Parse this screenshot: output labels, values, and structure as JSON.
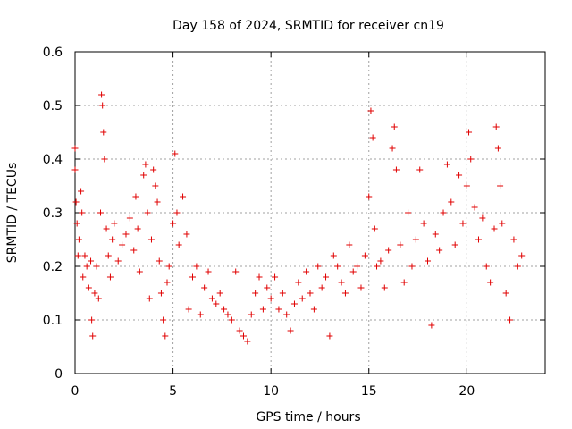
{
  "chart_data": {
    "type": "scatter",
    "title": "Day 158 of 2024, SRMTID for receiver cn19",
    "xlabel": "GPS time / hours",
    "ylabel": "SRMTID / TECUs",
    "xlim": [
      0,
      24
    ],
    "ylim": [
      0,
      0.6
    ],
    "x_ticks": [
      0,
      5,
      10,
      15,
      20
    ],
    "x_tick_labels": [
      "0",
      "5",
      "10",
      "15",
      "20"
    ],
    "y_ticks": [
      0,
      0.1,
      0.2,
      0.3,
      0.4,
      0.5,
      0.6
    ],
    "y_tick_labels": [
      "0",
      "0.1",
      "0.2",
      "0.3",
      "0.4",
      "0.5",
      "0.6"
    ],
    "grid": true,
    "marker": "plus",
    "marker_color": "#e00000",
    "series": [
      {
        "name": "SRMTID",
        "points": [
          [
            0.0,
            0.42
          ],
          [
            0.0,
            0.38
          ],
          [
            0.05,
            0.32
          ],
          [
            0.1,
            0.28
          ],
          [
            0.15,
            0.22
          ],
          [
            0.2,
            0.25
          ],
          [
            0.3,
            0.34
          ],
          [
            0.35,
            0.3
          ],
          [
            0.4,
            0.18
          ],
          [
            0.5,
            0.22
          ],
          [
            0.6,
            0.2
          ],
          [
            0.7,
            0.16
          ],
          [
            0.8,
            0.21
          ],
          [
            0.85,
            0.1
          ],
          [
            0.9,
            0.07
          ],
          [
            1.0,
            0.15
          ],
          [
            1.1,
            0.2
          ],
          [
            1.2,
            0.14
          ],
          [
            1.3,
            0.3
          ],
          [
            1.35,
            0.52
          ],
          [
            1.4,
            0.5
          ],
          [
            1.45,
            0.45
          ],
          [
            1.5,
            0.4
          ],
          [
            1.6,
            0.27
          ],
          [
            1.7,
            0.22
          ],
          [
            1.8,
            0.18
          ],
          [
            1.9,
            0.25
          ],
          [
            2.0,
            0.28
          ],
          [
            2.2,
            0.21
          ],
          [
            2.4,
            0.24
          ],
          [
            2.6,
            0.26
          ],
          [
            2.8,
            0.29
          ],
          [
            3.0,
            0.23
          ],
          [
            3.1,
            0.33
          ],
          [
            3.2,
            0.27
          ],
          [
            3.3,
            0.19
          ],
          [
            3.5,
            0.37
          ],
          [
            3.6,
            0.39
          ],
          [
            3.7,
            0.3
          ],
          [
            3.8,
            0.14
          ],
          [
            3.9,
            0.25
          ],
          [
            4.0,
            0.38
          ],
          [
            4.1,
            0.35
          ],
          [
            4.2,
            0.32
          ],
          [
            4.3,
            0.21
          ],
          [
            4.4,
            0.15
          ],
          [
            4.5,
            0.1
          ],
          [
            4.6,
            0.07
          ],
          [
            4.7,
            0.17
          ],
          [
            4.8,
            0.2
          ],
          [
            5.0,
            0.28
          ],
          [
            5.1,
            0.41
          ],
          [
            5.2,
            0.3
          ],
          [
            5.3,
            0.24
          ],
          [
            5.5,
            0.33
          ],
          [
            5.7,
            0.26
          ],
          [
            5.8,
            0.12
          ],
          [
            6.0,
            0.18
          ],
          [
            6.2,
            0.2
          ],
          [
            6.4,
            0.11
          ],
          [
            6.6,
            0.16
          ],
          [
            6.8,
            0.19
          ],
          [
            7.0,
            0.14
          ],
          [
            7.2,
            0.13
          ],
          [
            7.4,
            0.15
          ],
          [
            7.6,
            0.12
          ],
          [
            7.8,
            0.11
          ],
          [
            8.0,
            0.1
          ],
          [
            8.2,
            0.19
          ],
          [
            8.4,
            0.08
          ],
          [
            8.6,
            0.07
          ],
          [
            8.8,
            0.06
          ],
          [
            9.0,
            0.11
          ],
          [
            9.2,
            0.15
          ],
          [
            9.4,
            0.18
          ],
          [
            9.6,
            0.12
          ],
          [
            9.8,
            0.16
          ],
          [
            10.0,
            0.14
          ],
          [
            10.2,
            0.18
          ],
          [
            10.4,
            0.12
          ],
          [
            10.6,
            0.15
          ],
          [
            10.8,
            0.11
          ],
          [
            11.0,
            0.08
          ],
          [
            11.2,
            0.13
          ],
          [
            11.4,
            0.17
          ],
          [
            11.6,
            0.14
          ],
          [
            11.8,
            0.19
          ],
          [
            12.0,
            0.15
          ],
          [
            12.2,
            0.12
          ],
          [
            12.4,
            0.2
          ],
          [
            12.6,
            0.16
          ],
          [
            12.8,
            0.18
          ],
          [
            13.0,
            0.07
          ],
          [
            13.2,
            0.22
          ],
          [
            13.4,
            0.2
          ],
          [
            13.6,
            0.17
          ],
          [
            13.8,
            0.15
          ],
          [
            14.0,
            0.24
          ],
          [
            14.2,
            0.19
          ],
          [
            14.4,
            0.2
          ],
          [
            14.6,
            0.16
          ],
          [
            14.8,
            0.22
          ],
          [
            15.0,
            0.33
          ],
          [
            15.1,
            0.49
          ],
          [
            15.2,
            0.44
          ],
          [
            15.3,
            0.27
          ],
          [
            15.4,
            0.2
          ],
          [
            15.6,
            0.21
          ],
          [
            15.8,
            0.16
          ],
          [
            16.0,
            0.23
          ],
          [
            16.2,
            0.42
          ],
          [
            16.3,
            0.46
          ],
          [
            16.4,
            0.38
          ],
          [
            16.6,
            0.24
          ],
          [
            16.8,
            0.17
          ],
          [
            17.0,
            0.3
          ],
          [
            17.2,
            0.2
          ],
          [
            17.4,
            0.25
          ],
          [
            17.6,
            0.38
          ],
          [
            17.8,
            0.28
          ],
          [
            18.0,
            0.21
          ],
          [
            18.2,
            0.09
          ],
          [
            18.4,
            0.26
          ],
          [
            18.6,
            0.23
          ],
          [
            18.8,
            0.3
          ],
          [
            19.0,
            0.39
          ],
          [
            19.2,
            0.32
          ],
          [
            19.4,
            0.24
          ],
          [
            19.6,
            0.37
          ],
          [
            19.8,
            0.28
          ],
          [
            20.0,
            0.35
          ],
          [
            20.1,
            0.45
          ],
          [
            20.2,
            0.4
          ],
          [
            20.4,
            0.31
          ],
          [
            20.6,
            0.25
          ],
          [
            20.8,
            0.29
          ],
          [
            21.0,
            0.2
          ],
          [
            21.2,
            0.17
          ],
          [
            21.4,
            0.27
          ],
          [
            21.5,
            0.46
          ],
          [
            21.6,
            0.42
          ],
          [
            21.7,
            0.35
          ],
          [
            21.8,
            0.28
          ],
          [
            22.0,
            0.15
          ],
          [
            22.2,
            0.1
          ],
          [
            22.4,
            0.25
          ],
          [
            22.6,
            0.2
          ],
          [
            22.8,
            0.22
          ]
        ]
      }
    ]
  }
}
